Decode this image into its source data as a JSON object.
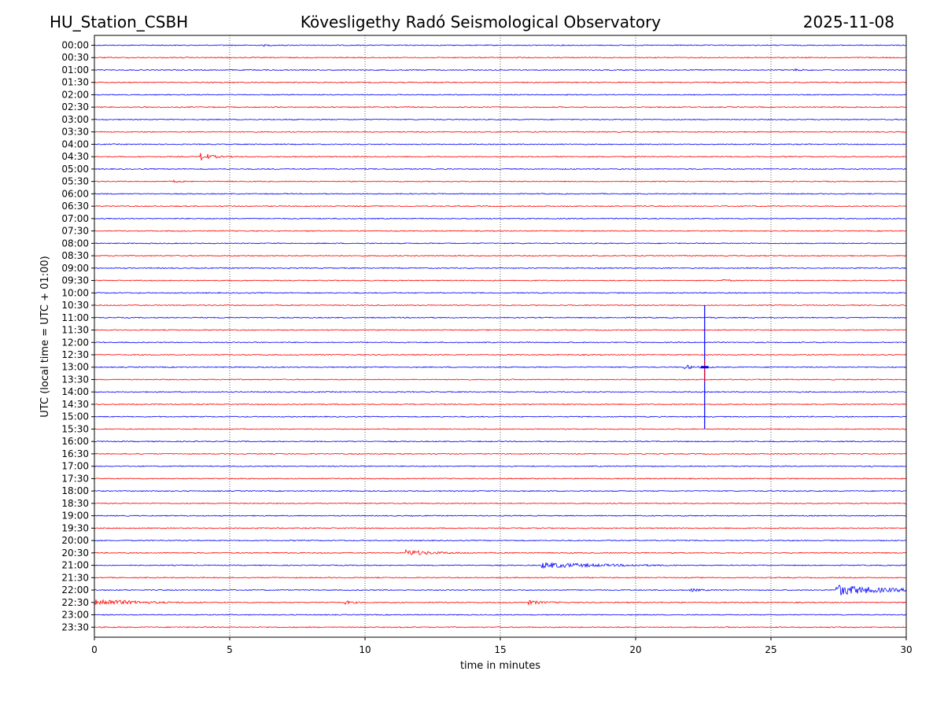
{
  "header": {
    "station": "HU_Station_CSBH",
    "observatory": "Kövesligethy Radó Seismological Observatory",
    "date": "2025-11-08"
  },
  "chart_data": {
    "type": "line",
    "title": "Kövesligethy Radó Seismological Observatory",
    "xlabel": "time in minutes",
    "ylabel": "UTC (local time = UTC + 01:00)",
    "xlim": [
      0,
      30
    ],
    "x_ticks": [
      0,
      5,
      10,
      15,
      20,
      25,
      30
    ],
    "grid": "vertical dotted",
    "trace_colors": [
      "#0000ff",
      "#ff0000"
    ],
    "rows": [
      "00:00",
      "00:30",
      "01:00",
      "01:30",
      "02:00",
      "02:30",
      "03:00",
      "03:30",
      "04:00",
      "04:30",
      "05:00",
      "05:30",
      "06:00",
      "06:30",
      "07:00",
      "07:30",
      "08:00",
      "08:30",
      "09:00",
      "09:30",
      "10:00",
      "10:30",
      "11:00",
      "11:30",
      "12:00",
      "12:30",
      "13:00",
      "13:30",
      "14:00",
      "14:30",
      "15:00",
      "15:30",
      "16:00",
      "16:30",
      "17:00",
      "17:30",
      "18:00",
      "18:30",
      "19:00",
      "19:30",
      "20:00",
      "20:30",
      "21:00",
      "21:30",
      "22:00",
      "22:30",
      "23:00",
      "23:30"
    ],
    "events": [
      {
        "row": "00:00",
        "start_min": 6.2,
        "end_min": 6.6,
        "amp": 1.0,
        "decay_min": 0.2
      },
      {
        "row": "01:00",
        "start_min": 25.8,
        "end_min": 26.6,
        "amp": 1.0,
        "decay_min": 0.4
      },
      {
        "row": "04:30",
        "start_min": 3.9,
        "end_min": 6.5,
        "amp": 6.0,
        "decay_min": 0.35
      },
      {
        "row": "05:30",
        "start_min": 2.9,
        "end_min": 3.5,
        "amp": 1.5,
        "decay_min": 0.2
      },
      {
        "row": "09:30",
        "start_min": 23.2,
        "end_min": 23.8,
        "amp": 1.5,
        "decay_min": 0.2
      },
      {
        "row": "13:00",
        "start_min": 21.8,
        "end_min": 23.0,
        "amp": 3.0,
        "decay_min": 0.3
      },
      {
        "row": "20:30",
        "start_min": 11.5,
        "end_min": 15.5,
        "amp": 3.5,
        "decay_min": 0.9
      },
      {
        "row": "21:00",
        "start_min": 16.5,
        "end_min": 21.5,
        "amp": 3.5,
        "decay_min": 2.0
      },
      {
        "row": "22:00",
        "start_min": 22.0,
        "end_min": 23.0,
        "amp": 2.0,
        "decay_min": 0.3
      },
      {
        "row": "22:00",
        "start_min": 27.4,
        "end_min": 30.0,
        "amp": 7.0,
        "decay_min": 1.6
      },
      {
        "row": "22:30",
        "start_min": 0.0,
        "end_min": 4.0,
        "amp": 5.0,
        "decay_min": 1.2
      },
      {
        "row": "22:30",
        "start_min": 9.2,
        "end_min": 10.0,
        "amp": 2.5,
        "decay_min": 0.3
      },
      {
        "row": "22:30",
        "start_min": 16.0,
        "end_min": 17.4,
        "amp": 2.5,
        "decay_min": 0.5
      }
    ],
    "spike": {
      "minute": 22.55,
      "from_row": "10:30",
      "to_row": "15:30",
      "peak_row": "13:00"
    }
  }
}
